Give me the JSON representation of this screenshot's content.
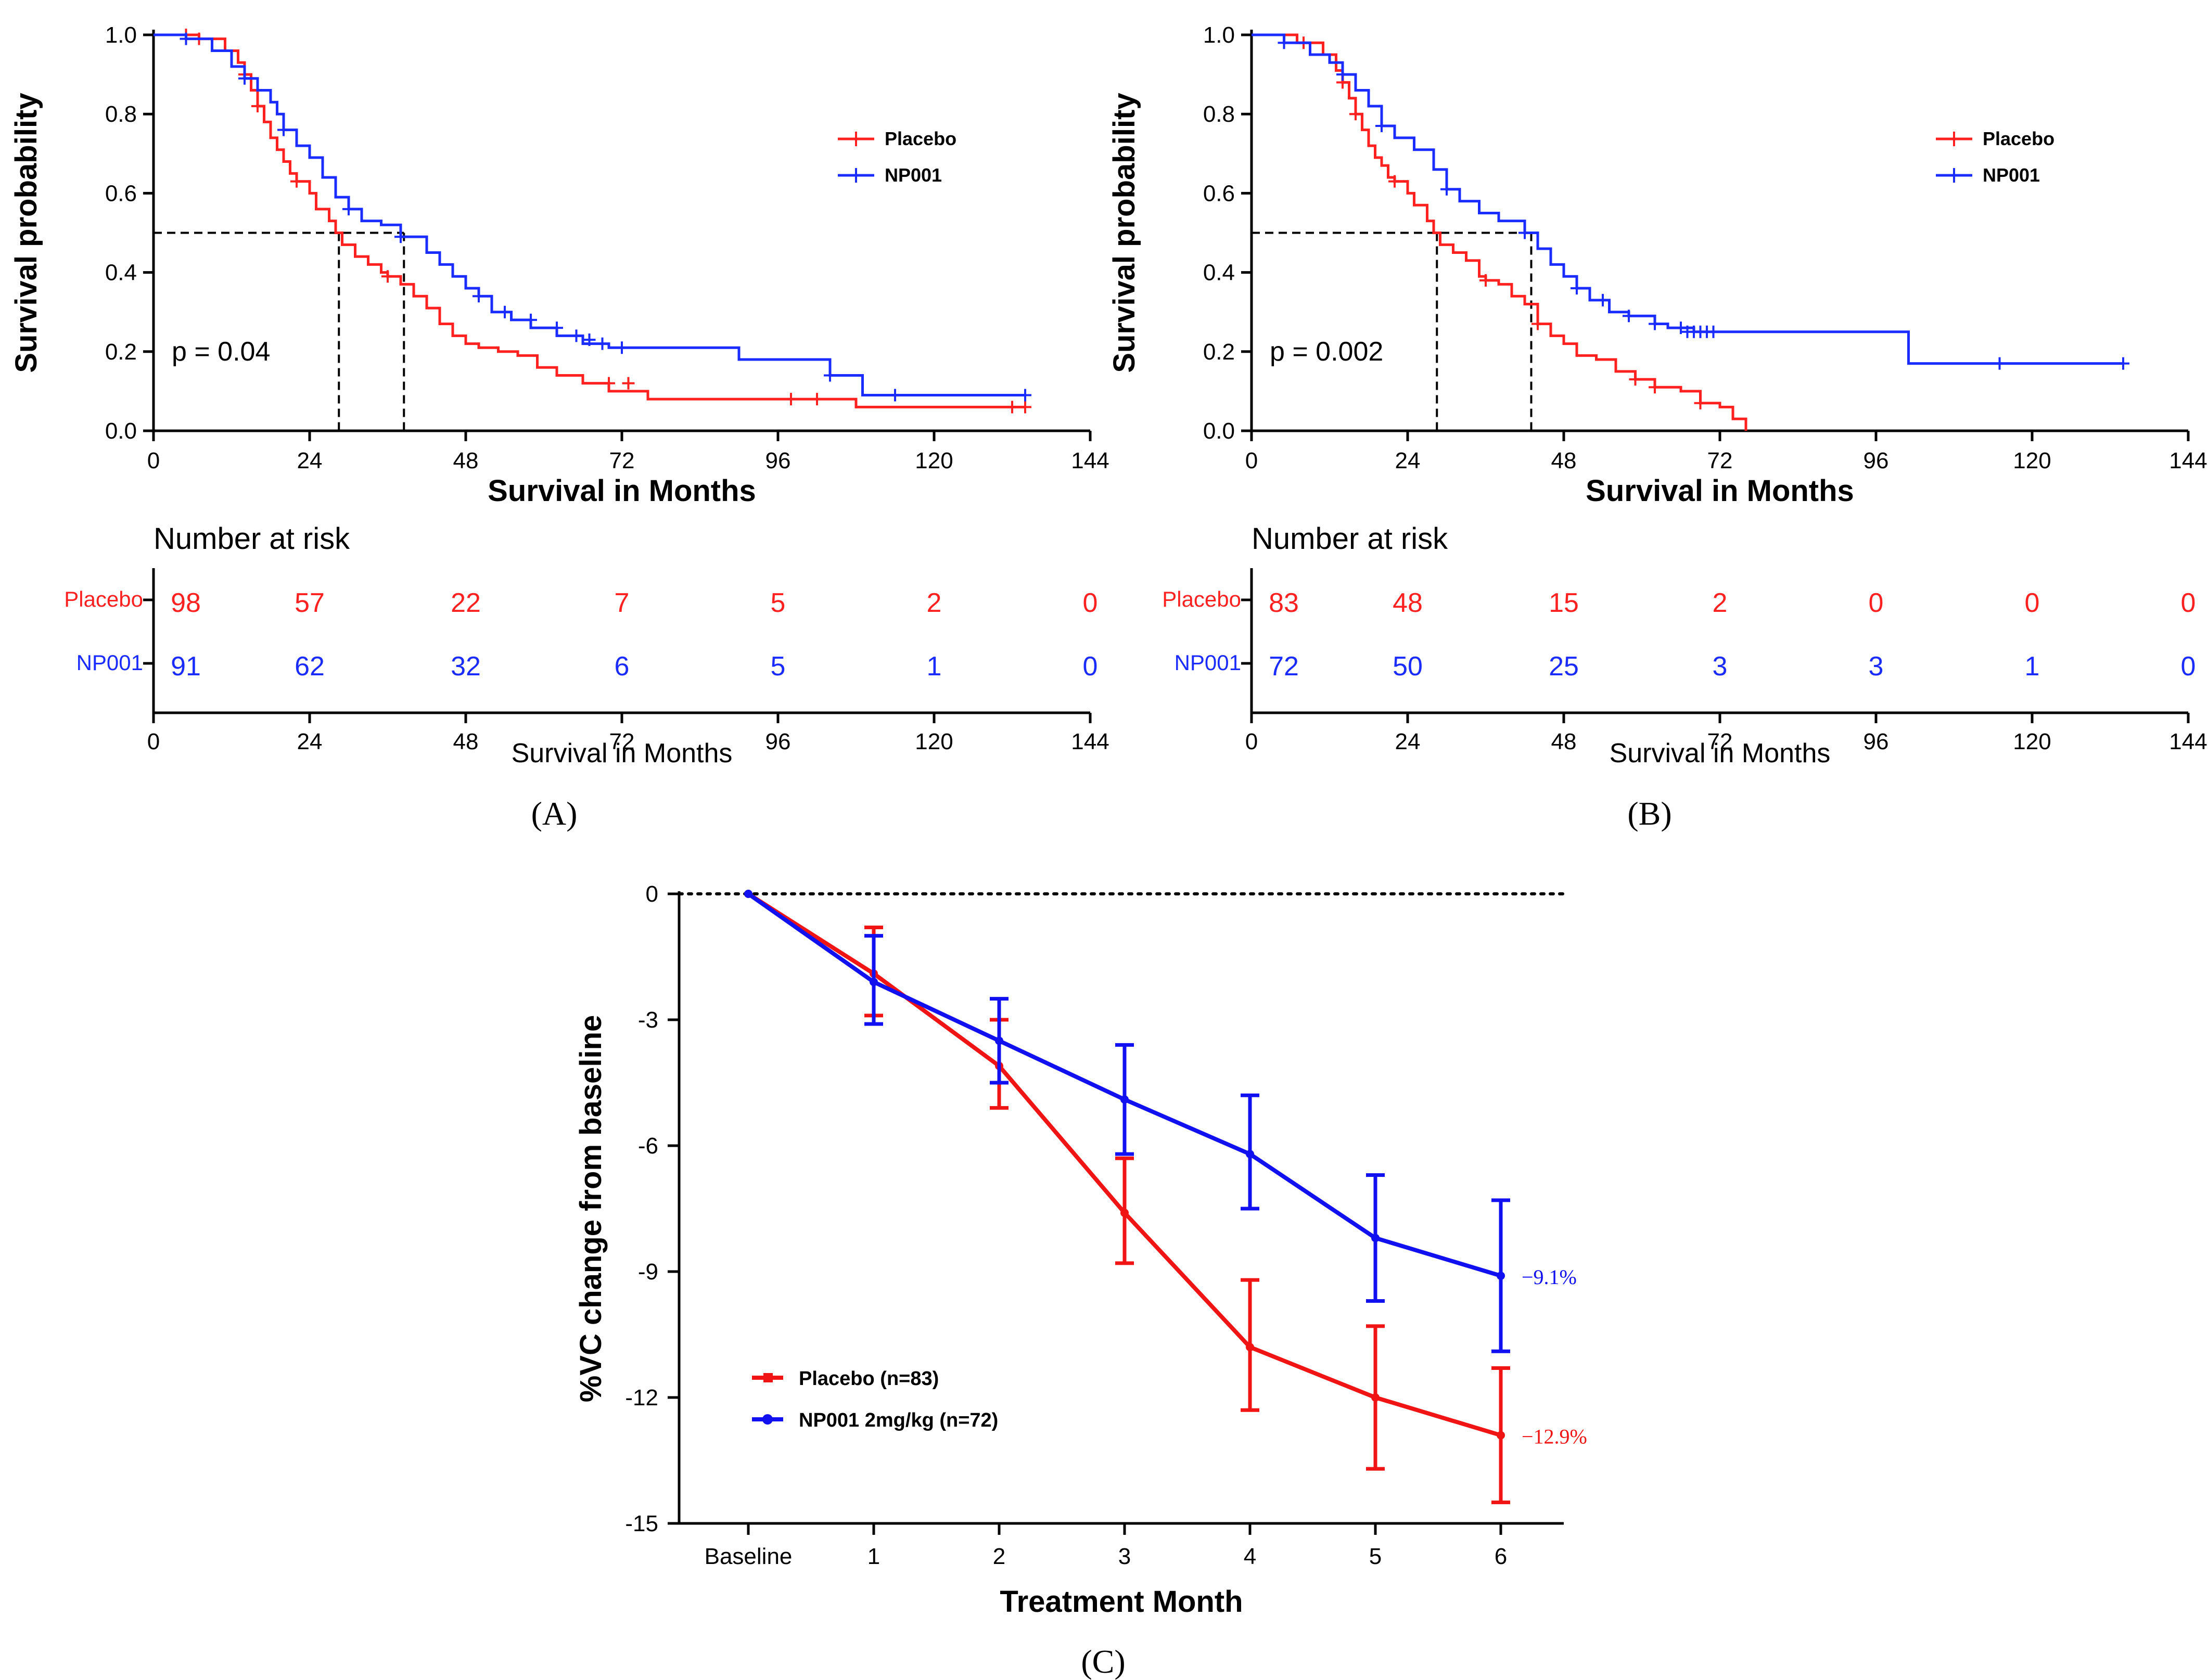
{
  "colors": {
    "placebo": "#ff2020",
    "np001": "#1a2cff",
    "placebo_c": "#f01414",
    "np001_c": "#1010f0",
    "axis": "#000000"
  },
  "panel_labels": {
    "a": "(A)",
    "b": "(B)",
    "c": "(C)"
  },
  "chart_data": [
    {
      "id": "A",
      "type": "line",
      "step": true,
      "title": "",
      "xlabel": "Survival in Months",
      "ylabel": "Survival probability",
      "xlim": [
        0,
        144
      ],
      "ylim": [
        0,
        1
      ],
      "xticks": [
        "0",
        "24",
        "48",
        "72",
        "96",
        "120",
        "144"
      ],
      "yticks": [
        "0.0",
        "0.2",
        "0.4",
        "0.6",
        "0.8",
        "1.0"
      ],
      "grid": false,
      "legend_position": "top-right",
      "annotation": "p = 0.04",
      "medians": [
        28.5,
        38.5
      ],
      "series": [
        {
          "name": "Placebo",
          "color": "#ff2020",
          "x": [
            0,
            7,
            11,
            13,
            14,
            15,
            16,
            17,
            18,
            19,
            20,
            21,
            22,
            24,
            25,
            27,
            28,
            29,
            31,
            33,
            35,
            36,
            38,
            40,
            42,
            44,
            46,
            48,
            50,
            53,
            56,
            59,
            62,
            66,
            70,
            76,
            90,
            108,
            134
          ],
          "y": [
            1,
            0.99,
            0.96,
            0.93,
            0.9,
            0.86,
            0.82,
            0.78,
            0.74,
            0.71,
            0.68,
            0.65,
            0.63,
            0.6,
            0.56,
            0.53,
            0.5,
            0.47,
            0.44,
            0.42,
            0.4,
            0.39,
            0.37,
            0.34,
            0.31,
            0.27,
            0.24,
            0.22,
            0.21,
            0.2,
            0.19,
            0.16,
            0.14,
            0.12,
            0.1,
            0.08,
            0.08,
            0.06,
            0.06
          ],
          "censor_x": [
            5,
            7,
            14,
            16,
            22,
            36,
            70,
            73,
            98,
            102,
            132,
            134
          ],
          "censor_y": [
            1,
            0.99,
            0.9,
            0.82,
            0.63,
            0.39,
            0.12,
            0.12,
            0.08,
            0.08,
            0.06,
            0.06
          ]
        },
        {
          "name": "NP001",
          "color": "#1a2cff",
          "x": [
            0,
            5,
            9,
            12,
            14,
            16,
            18,
            19,
            20,
            22,
            24,
            26,
            28,
            30,
            32,
            35,
            38,
            42,
            44,
            46,
            48,
            50,
            52,
            55,
            58,
            62,
            66,
            70,
            90,
            104,
            109,
            134
          ],
          "y": [
            1,
            0.99,
            0.96,
            0.92,
            0.89,
            0.86,
            0.83,
            0.8,
            0.76,
            0.72,
            0.69,
            0.64,
            0.59,
            0.56,
            0.53,
            0.52,
            0.49,
            0.45,
            0.42,
            0.39,
            0.36,
            0.34,
            0.3,
            0.28,
            0.26,
            0.24,
            0.22,
            0.21,
            0.18,
            0.14,
            0.09,
            0.09
          ],
          "censor_x": [
            5,
            14,
            20,
            30,
            38,
            50,
            54,
            58,
            62,
            65,
            67,
            69,
            72,
            104,
            114,
            134
          ],
          "censor_y": [
            0.99,
            0.89,
            0.76,
            0.56,
            0.49,
            0.34,
            0.3,
            0.28,
            0.26,
            0.24,
            0.23,
            0.22,
            0.21,
            0.14,
            0.09,
            0.09
          ]
        }
      ],
      "risk_table": {
        "title": "Number at risk",
        "xlabel": "Survival in Months",
        "times": [
          0,
          24,
          48,
          72,
          96,
          120,
          144
        ],
        "rows": [
          {
            "name": "Placebo",
            "color": "#ff2020",
            "values": [
              "98",
              "57",
              "22",
              "7",
              "5",
              "2",
              "0"
            ]
          },
          {
            "name": "NP001",
            "color": "#1a2cff",
            "values": [
              "91",
              "62",
              "32",
              "6",
              "5",
              "1",
              "0"
            ]
          }
        ]
      }
    },
    {
      "id": "B",
      "type": "line",
      "step": true,
      "title": "",
      "xlabel": "Survival in Months",
      "ylabel": "Survival probability",
      "xlim": [
        0,
        144
      ],
      "ylim": [
        0,
        1
      ],
      "xticks": [
        "0",
        "24",
        "48",
        "72",
        "96",
        "120",
        "144"
      ],
      "yticks": [
        "0.0",
        "0.2",
        "0.4",
        "0.6",
        "0.8",
        "1.0"
      ],
      "grid": false,
      "legend_position": "top-right",
      "annotation": "p = 0.002",
      "medians": [
        28.5,
        43
      ],
      "series": [
        {
          "name": "Placebo",
          "color": "#ff2020",
          "x": [
            0,
            7,
            11,
            13,
            14,
            15,
            16,
            17,
            18,
            19,
            20,
            21,
            22,
            24,
            25,
            27,
            28,
            29,
            31,
            33,
            35,
            36,
            38,
            40,
            42,
            44,
            46,
            48,
            50,
            53,
            56,
            59,
            62,
            66,
            69,
            72,
            74,
            76
          ],
          "y": [
            1,
            0.98,
            0.95,
            0.91,
            0.88,
            0.84,
            0.8,
            0.76,
            0.72,
            0.69,
            0.67,
            0.64,
            0.63,
            0.6,
            0.57,
            0.53,
            0.5,
            0.47,
            0.45,
            0.43,
            0.39,
            0.38,
            0.37,
            0.34,
            0.32,
            0.27,
            0.24,
            0.22,
            0.19,
            0.18,
            0.15,
            0.13,
            0.11,
            0.1,
            0.07,
            0.06,
            0.03,
            0.0
          ],
          "censor_x": [
            8,
            14,
            16,
            22,
            36,
            44,
            59,
            62,
            69
          ],
          "censor_y": [
            0.98,
            0.88,
            0.8,
            0.63,
            0.38,
            0.27,
            0.13,
            0.11,
            0.07
          ]
        },
        {
          "name": "NP001",
          "color": "#1a2cff",
          "x": [
            0,
            5,
            9,
            12,
            14,
            16,
            18,
            20,
            22,
            25,
            28,
            30,
            32,
            35,
            38,
            42,
            44,
            46,
            48,
            50,
            52,
            55,
            58,
            62,
            64,
            68,
            101,
            134
          ],
          "y": [
            1,
            0.98,
            0.95,
            0.93,
            0.9,
            0.86,
            0.82,
            0.77,
            0.74,
            0.71,
            0.66,
            0.61,
            0.58,
            0.55,
            0.53,
            0.5,
            0.46,
            0.42,
            0.39,
            0.36,
            0.33,
            0.3,
            0.29,
            0.27,
            0.26,
            0.25,
            0.17,
            0.17
          ],
          "censor_x": [
            5,
            14,
            20,
            30,
            42,
            50,
            54,
            58,
            62,
            66,
            67,
            68,
            69,
            70,
            71,
            115,
            134
          ],
          "censor_y": [
            0.98,
            0.9,
            0.77,
            0.61,
            0.5,
            0.36,
            0.33,
            0.29,
            0.27,
            0.26,
            0.25,
            0.25,
            0.25,
            0.25,
            0.25,
            0.17,
            0.17
          ]
        }
      ],
      "risk_table": {
        "title": "Number at risk",
        "xlabel": "Survival in Months",
        "times": [
          0,
          24,
          48,
          72,
          96,
          120,
          144
        ],
        "rows": [
          {
            "name": "Placebo",
            "color": "#ff2020",
            "values": [
              "83",
              "48",
              "15",
              "2",
              "0",
              "0",
              "0"
            ]
          },
          {
            "name": "NP001",
            "color": "#1a2cff",
            "values": [
              "72",
              "50",
              "25",
              "3",
              "3",
              "1",
              "0"
            ]
          }
        ]
      }
    },
    {
      "id": "C",
      "type": "line",
      "title": "",
      "xlabel": "Treatment Month",
      "ylabel": "%VC change from baseline",
      "categories": [
        "Baseline",
        "1",
        "2",
        "3",
        "4",
        "5",
        "6"
      ],
      "ylim": [
        -15,
        0
      ],
      "yticks": [
        "0",
        "-3",
        "-6",
        "-9",
        "-12",
        "-15"
      ],
      "grid": false,
      "reference_line": 0,
      "legend_position": "bottom-left",
      "series": [
        {
          "name": "Placebo (n=83)",
          "color": "#f01414",
          "values": [
            0,
            -1.9,
            -4.1,
            -7.6,
            -10.8,
            -12.0,
            -12.9
          ],
          "err_low": [
            0,
            -2.9,
            -5.1,
            -8.8,
            -12.3,
            -13.7,
            -14.5
          ],
          "err_high": [
            0,
            -0.8,
            -3.0,
            -6.3,
            -9.2,
            -10.3,
            -11.3
          ],
          "end_label": "−12.9%"
        },
        {
          "name": "NP001 2mg/kg (n=72)",
          "color": "#1010f0",
          "values": [
            0,
            -2.1,
            -3.5,
            -4.9,
            -6.2,
            -8.2,
            -9.1
          ],
          "err_low": [
            0,
            -3.1,
            -4.5,
            -6.2,
            -7.5,
            -9.7,
            -10.9
          ],
          "err_high": [
            0,
            -1.0,
            -2.5,
            -3.6,
            -4.8,
            -6.7,
            -7.3
          ],
          "end_label": "−9.1%"
        }
      ]
    }
  ]
}
